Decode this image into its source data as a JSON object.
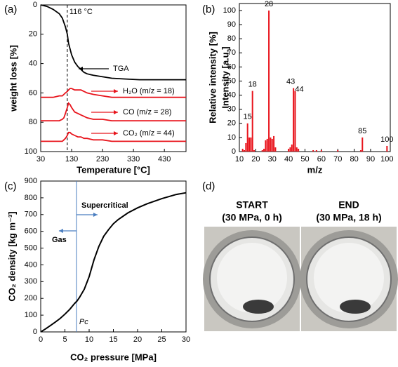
{
  "chart_data": [
    {
      "type": "line",
      "panel_label": "(a)",
      "xlabel": "Temperature [°C]",
      "ylabel": "weight loss [%]",
      "x": [
        30,
        50,
        70,
        90,
        100,
        105,
        110,
        116,
        120,
        125,
        130,
        140,
        150,
        160,
        170,
        180,
        200,
        230,
        260,
        300,
        350,
        400,
        450,
        500
      ],
      "series": [
        {
          "name": "TGA",
          "color": "#000000",
          "values": [
            0,
            1,
            3,
            6,
            9,
            12,
            15,
            20,
            26,
            30,
            34,
            39,
            42,
            44,
            46,
            47,
            48,
            49,
            50,
            50.5,
            51,
            51,
            51,
            51
          ]
        },
        {
          "name": "H₂O (m/z = 18)",
          "color": "#e8141c",
          "values": [
            63,
            63,
            63,
            62,
            62,
            61,
            60,
            59,
            58,
            57,
            57,
            58,
            58,
            58,
            59,
            60,
            61,
            62,
            63,
            63,
            63,
            63,
            63,
            63
          ]
        },
        {
          "name": "CO (m/z = 28)",
          "color": "#e8141c",
          "values": [
            79,
            79,
            79,
            79,
            78,
            77,
            74,
            70,
            67,
            68,
            70,
            73,
            74,
            75,
            76,
            77,
            78,
            78,
            79,
            79,
            79,
            79,
            79,
            79
          ]
        },
        {
          "name": "CO₂ (m/z = 44)",
          "color": "#e8141c",
          "values": [
            93,
            93,
            93,
            93,
            93,
            92,
            91,
            89,
            87,
            87,
            88,
            89,
            90,
            90,
            91,
            91,
            92,
            92,
            93,
            93,
            93,
            93,
            93,
            93
          ]
        }
      ],
      "xlim": [
        30,
        500
      ],
      "xticks": [
        30,
        130,
        230,
        330,
        430
      ],
      "ylim": [
        100,
        0
      ],
      "yticks": [
        0,
        20,
        40,
        60,
        80,
        100
      ],
      "vline": {
        "x": 116,
        "label": "116 °C",
        "color": "#000000"
      }
    },
    {
      "type": "stick",
      "panel_label": "(b)",
      "xlabel": "m/z",
      "ylabel": "Relative intensity [%]",
      "ylabel_secondary": "Intensity [a.u.]",
      "color": "#e8141c",
      "x": [
        12,
        13,
        14,
        15,
        16,
        17,
        18,
        19,
        24,
        25,
        26,
        27,
        28,
        29,
        30,
        31,
        32,
        40,
        41,
        42,
        43,
        44,
        45,
        46,
        55,
        57,
        60,
        70,
        84,
        85,
        100
      ],
      "values": [
        2,
        1,
        6,
        20,
        10,
        10,
        43,
        1,
        1,
        2,
        8,
        9,
        100,
        10,
        9,
        11,
        3,
        2,
        3,
        5,
        45,
        43,
        3,
        2,
        1,
        1,
        1,
        1,
        1,
        10,
        4
      ],
      "labels": [
        null,
        null,
        null,
        "15",
        null,
        null,
        "18",
        null,
        null,
        null,
        null,
        null,
        "28",
        null,
        null,
        null,
        null,
        null,
        null,
        null,
        "43",
        "44",
        null,
        null,
        null,
        null,
        null,
        null,
        null,
        "85",
        "100"
      ],
      "xlim": [
        10,
        102
      ],
      "xticks": [
        10,
        20,
        30,
        40,
        50,
        60,
        70,
        80,
        90,
        100
      ],
      "ylim": [
        0,
        105
      ],
      "yticks": [
        0,
        10,
        20,
        30,
        40,
        50,
        60,
        70,
        80,
        90,
        100
      ]
    },
    {
      "type": "line",
      "panel_label": "(c)",
      "xlabel": "CO₂ pressure [MPa]",
      "ylabel": "CO₂ density [kg m⁻³]",
      "x": [
        0,
        1,
        2,
        3,
        4,
        5,
        6,
        7,
        7.5,
        8,
        9,
        10,
        11,
        12,
        13,
        14,
        15,
        16,
        18,
        20,
        22,
        25,
        28,
        30
      ],
      "series": [
        {
          "color": "#000000",
          "values": [
            0,
            18,
            38,
            58,
            80,
            106,
            135,
            170,
            185,
            205,
            255,
            330,
            430,
            510,
            570,
            610,
            645,
            670,
            710,
            740,
            765,
            795,
            820,
            830
          ]
        }
      ],
      "xlim": [
        0,
        30
      ],
      "xticks": [
        0,
        5,
        10,
        15,
        20,
        25,
        30
      ],
      "ylim": [
        0,
        900
      ],
      "yticks": [
        0,
        100,
        200,
        300,
        400,
        500,
        600,
        700,
        800,
        900
      ],
      "vline": {
        "x": 7.38,
        "label": "Pc",
        "color": "#4a7ec0"
      },
      "annotations": [
        "Supercritical",
        "Gas"
      ]
    }
  ],
  "panel_d": {
    "panel_label": "(d)",
    "left": {
      "title": "START",
      "subtitle": "(30 MPa, 0 h)"
    },
    "right": {
      "title": "END",
      "subtitle": "(30 MPa, 18 h)"
    }
  }
}
